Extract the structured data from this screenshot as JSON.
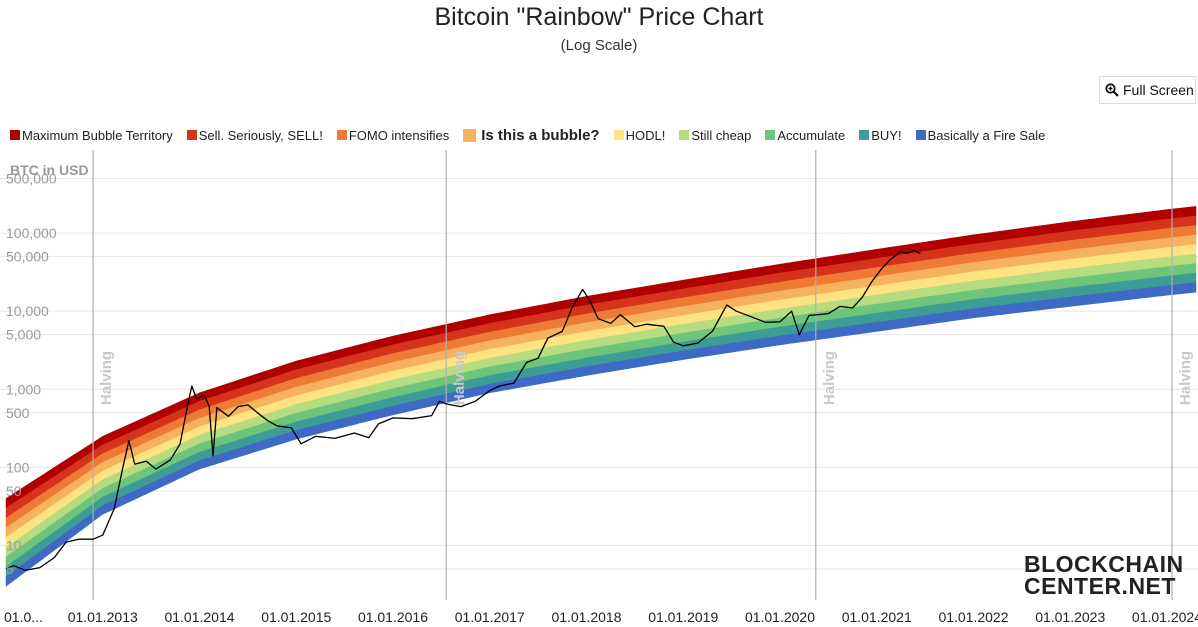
{
  "header": {
    "title": "Bitcoin \"Rainbow\" Price Chart",
    "subtitle": "(Log Scale)",
    "fullscreen_label": "Full Screen"
  },
  "legend": [
    {
      "label": "Maximum Bubble Territory",
      "color": "#b00000"
    },
    {
      "label": "Sell. Seriously, SELL!",
      "color": "#d6331c"
    },
    {
      "label": "FOMO intensifies",
      "color": "#ef7a35"
    },
    {
      "label": "Is this a bubble?",
      "color": "#f7b25e"
    },
    {
      "label": "HODL!",
      "color": "#fde381"
    },
    {
      "label": "Still cheap",
      "color": "#b7dc80"
    },
    {
      "label": "Accumulate",
      "color": "#6dc57c"
    },
    {
      "label": "BUY!",
      "color": "#3e9c96"
    },
    {
      "label": "Basically a Fire Sale",
      "color": "#3e69c4"
    }
  ],
  "logo": {
    "line1": "BLOCKCHAIN",
    "line2": "CENTER.NET"
  },
  "chart_data": {
    "type": "area",
    "ylabel": "BTC in USD",
    "yscale": "log",
    "ylim": [
      2,
      1000000
    ],
    "xlim": [
      2012.0,
      2024.3
    ],
    "y_ticks": [
      {
        "value": 500000,
        "label": "500,000"
      },
      {
        "value": 100000,
        "label": "100,000"
      },
      {
        "value": 50000,
        "label": "50,000"
      },
      {
        "value": 10000,
        "label": "10,000"
      },
      {
        "value": 5000,
        "label": "5,000"
      },
      {
        "value": 1000,
        "label": "1,000"
      },
      {
        "value": 500,
        "label": "500"
      },
      {
        "value": 100,
        "label": "100"
      },
      {
        "value": 50,
        "label": "50"
      },
      {
        "value": 10,
        "label": "10"
      },
      {
        "value": 5,
        "label": "5"
      }
    ],
    "x_ticks": [
      {
        "value": 2012.0,
        "label": "01.0..."
      },
      {
        "value": 2013.0,
        "label": "01.01.2013"
      },
      {
        "value": 2014.0,
        "label": "01.01.2014"
      },
      {
        "value": 2015.0,
        "label": "01.01.2015"
      },
      {
        "value": 2016.0,
        "label": "01.01.2016"
      },
      {
        "value": 2017.0,
        "label": "01.01.2017"
      },
      {
        "value": 2018.0,
        "label": "01.01.2018"
      },
      {
        "value": 2019.0,
        "label": "01.01.2019"
      },
      {
        "value": 2020.0,
        "label": "01.01.2020"
      },
      {
        "value": 2021.0,
        "label": "01.01.2021"
      },
      {
        "value": 2022.0,
        "label": "01.01.2022"
      },
      {
        "value": 2023.0,
        "label": "01.01.2023"
      },
      {
        "value": 2024.0,
        "label": "01.01.2024"
      }
    ],
    "halvings": [
      {
        "x": 2012.9,
        "label": "Halving"
      },
      {
        "x": 2016.55,
        "label": "Halving"
      },
      {
        "x": 2020.37,
        "label": "Halving"
      },
      {
        "x": 2024.3,
        "label": "Halving"
      }
    ],
    "bands_lower_bound": [
      {
        "x": 2012.0,
        "y": 3
      },
      {
        "x": 2013.0,
        "y": 25
      },
      {
        "x": 2014.0,
        "y": 95
      },
      {
        "x": 2015.0,
        "y": 230
      },
      {
        "x": 2016.0,
        "y": 470
      },
      {
        "x": 2017.0,
        "y": 900
      },
      {
        "x": 2018.0,
        "y": 1500
      },
      {
        "x": 2019.0,
        "y": 2400
      },
      {
        "x": 2020.0,
        "y": 3700
      },
      {
        "x": 2021.0,
        "y": 5500
      },
      {
        "x": 2022.0,
        "y": 8200
      },
      {
        "x": 2023.0,
        "y": 11500
      },
      {
        "x": 2024.0,
        "y": 16000
      },
      {
        "x": 2024.3,
        "y": 17500
      }
    ],
    "bands_upper_bound": [
      {
        "x": 2012.0,
        "y": 40
      },
      {
        "x": 2013.0,
        "y": 250
      },
      {
        "x": 2014.0,
        "y": 900
      },
      {
        "x": 2015.0,
        "y": 2300
      },
      {
        "x": 2016.0,
        "y": 4800
      },
      {
        "x": 2017.0,
        "y": 9000
      },
      {
        "x": 2018.0,
        "y": 15500
      },
      {
        "x": 2019.0,
        "y": 25000
      },
      {
        "x": 2020.0,
        "y": 40000
      },
      {
        "x": 2021.0,
        "y": 62000
      },
      {
        "x": 2022.0,
        "y": 95000
      },
      {
        "x": 2023.0,
        "y": 140000
      },
      {
        "x": 2024.0,
        "y": 200000
      },
      {
        "x": 2024.3,
        "y": 220000
      }
    ],
    "price_series": {
      "color": "#000000",
      "points": [
        [
          2012.0,
          5
        ],
        [
          2012.08,
          5.5
        ],
        [
          2012.2,
          4.8
        ],
        [
          2012.35,
          5.2
        ],
        [
          2012.5,
          7
        ],
        [
          2012.62,
          11
        ],
        [
          2012.75,
          12
        ],
        [
          2012.9,
          12
        ],
        [
          2013.0,
          13.5
        ],
        [
          2013.12,
          30
        ],
        [
          2013.2,
          90
        ],
        [
          2013.27,
          220
        ],
        [
          2013.33,
          110
        ],
        [
          2013.45,
          120
        ],
        [
          2013.55,
          95
        ],
        [
          2013.7,
          125
        ],
        [
          2013.8,
          200
        ],
        [
          2013.88,
          650
        ],
        [
          2013.92,
          1100
        ],
        [
          2013.97,
          750
        ],
        [
          2014.05,
          850
        ],
        [
          2014.1,
          600
        ],
        [
          2014.14,
          140
        ],
        [
          2014.18,
          580
        ],
        [
          2014.3,
          450
        ],
        [
          2014.4,
          600
        ],
        [
          2014.5,
          630
        ],
        [
          2014.6,
          500
        ],
        [
          2014.7,
          400
        ],
        [
          2014.8,
          340
        ],
        [
          2014.95,
          320
        ],
        [
          2015.05,
          200
        ],
        [
          2015.2,
          250
        ],
        [
          2015.4,
          235
        ],
        [
          2015.6,
          275
        ],
        [
          2015.75,
          240
        ],
        [
          2015.85,
          360
        ],
        [
          2016.0,
          430
        ],
        [
          2016.2,
          420
        ],
        [
          2016.4,
          460
        ],
        [
          2016.48,
          700
        ],
        [
          2016.55,
          650
        ],
        [
          2016.7,
          600
        ],
        [
          2016.85,
          700
        ],
        [
          2017.0,
          960
        ],
        [
          2017.1,
          1100
        ],
        [
          2017.25,
          1200
        ],
        [
          2017.38,
          2200
        ],
        [
          2017.5,
          2500
        ],
        [
          2017.6,
          4500
        ],
        [
          2017.75,
          5500
        ],
        [
          2017.85,
          11000
        ],
        [
          2017.96,
          19000
        ],
        [
          2018.03,
          14000
        ],
        [
          2018.12,
          8000
        ],
        [
          2018.25,
          7000
        ],
        [
          2018.35,
          9000
        ],
        [
          2018.5,
          6300
        ],
        [
          2018.62,
          6800
        ],
        [
          2018.8,
          6400
        ],
        [
          2018.9,
          4000
        ],
        [
          2019.0,
          3600
        ],
        [
          2019.15,
          3900
        ],
        [
          2019.3,
          5500
        ],
        [
          2019.45,
          12000
        ],
        [
          2019.55,
          10000
        ],
        [
          2019.7,
          8500
        ],
        [
          2019.85,
          7200
        ],
        [
          2020.0,
          7300
        ],
        [
          2020.12,
          10000
        ],
        [
          2020.2,
          5000
        ],
        [
          2020.3,
          8800
        ],
        [
          2020.5,
          9300
        ],
        [
          2020.62,
          11500
        ],
        [
          2020.75,
          11000
        ],
        [
          2020.85,
          15000
        ],
        [
          2020.95,
          24000
        ],
        [
          2021.05,
          35000
        ],
        [
          2021.15,
          47000
        ],
        [
          2021.25,
          58000
        ],
        [
          2021.3,
          55000
        ],
        [
          2021.38,
          60000
        ],
        [
          2021.45,
          55000
        ]
      ]
    }
  }
}
